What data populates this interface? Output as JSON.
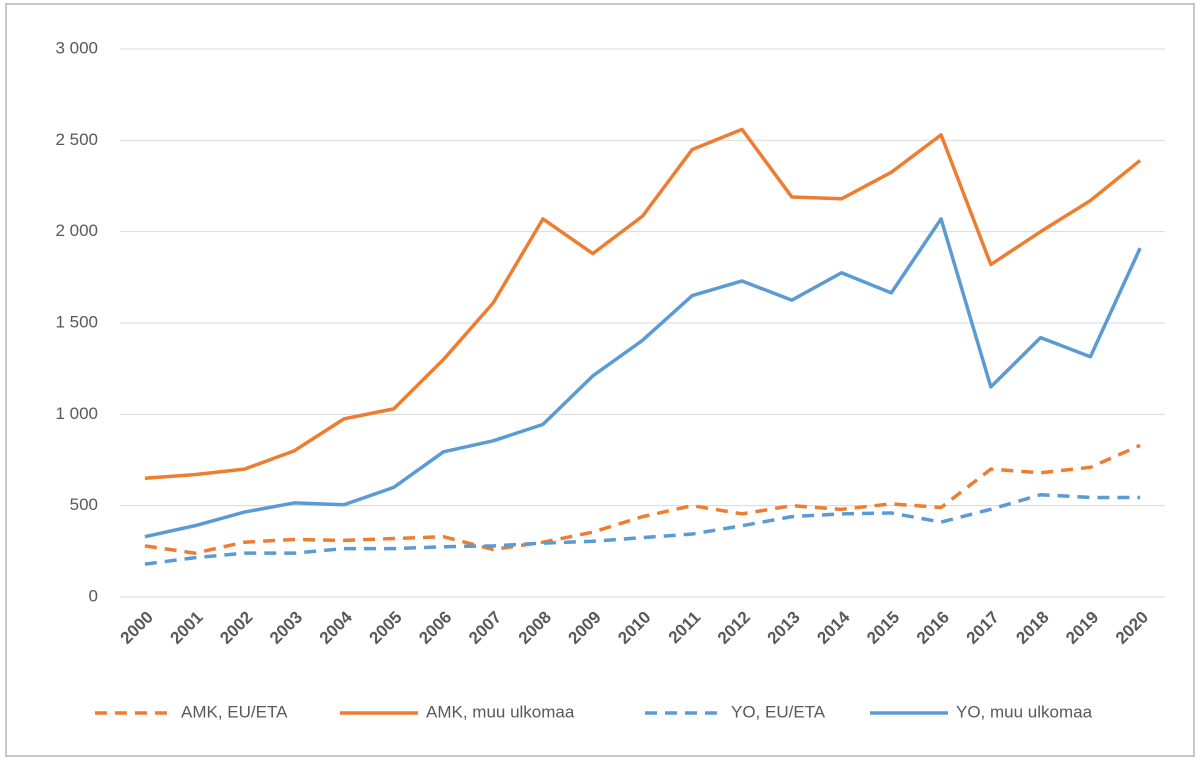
{
  "chart_data": {
    "type": "line",
    "categories": [
      "2000",
      "2001",
      "2002",
      "2003",
      "2004",
      "2005",
      "2006",
      "2007",
      "2008",
      "2009",
      "2010",
      "2011",
      "2012",
      "2013",
      "2014",
      "2015",
      "2016",
      "2017",
      "2018",
      "2019",
      "2020"
    ],
    "series": [
      {
        "name": "AMK, EU/ETA",
        "color": "#ed7d31",
        "dashed": true,
        "values": [
          280,
          240,
          300,
          315,
          310,
          320,
          330,
          260,
          300,
          355,
          440,
          500,
          455,
          500,
          480,
          510,
          490,
          700,
          680,
          710,
          830
        ]
      },
      {
        "name": "AMK, muu ulkomaa",
        "color": "#ed7d31",
        "dashed": false,
        "values": [
          650,
          670,
          700,
          800,
          975,
          1030,
          1300,
          1610,
          2070,
          1880,
          2085,
          2450,
          2560,
          2190,
          2180,
          2325,
          2530,
          1820,
          2000,
          2170,
          2390
        ]
      },
      {
        "name": "YO, EU/ETA",
        "color": "#5b9bd5",
        "dashed": true,
        "values": [
          180,
          215,
          240,
          240,
          265,
          265,
          275,
          280,
          295,
          305,
          325,
          345,
          390,
          440,
          455,
          460,
          410,
          480,
          560,
          545,
          545
        ]
      },
      {
        "name": "YO, muu ulkomaa",
        "color": "#5b9bd5",
        "dashed": false,
        "values": [
          330,
          390,
          465,
          515,
          505,
          600,
          795,
          855,
          945,
          1210,
          1405,
          1650,
          1730,
          1625,
          1775,
          1665,
          2070,
          1150,
          1420,
          1315,
          1910
        ]
      }
    ],
    "ylim": [
      0,
      3000
    ],
    "yticks": [
      0,
      500,
      {
        "value": 1000,
        "label": "1 000"
      },
      {
        "value": 1500,
        "label": "1 500"
      },
      {
        "value": 2000,
        "label": "2 000"
      },
      {
        "value": 2500,
        "label": "2 500"
      },
      {
        "value": 3000,
        "label": "3 000"
      }
    ],
    "grid": true,
    "legend": "bottom"
  }
}
